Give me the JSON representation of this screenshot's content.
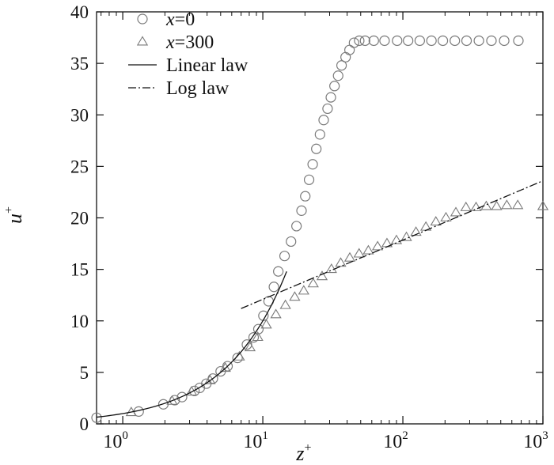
{
  "chart_data": {
    "type": "scatter",
    "xlabel": "z",
    "xlabel_sup": "+",
    "ylabel": "u",
    "ylabel_sup": "+",
    "x_scale": "log",
    "xlim": [
      0.65,
      1000
    ],
    "ylim": [
      0,
      40
    ],
    "x_ticks": [
      {
        "value": 1,
        "base": "10",
        "exp": "0"
      },
      {
        "value": 10,
        "base": "10",
        "exp": "1"
      },
      {
        "value": 100,
        "base": "10",
        "exp": "2"
      },
      {
        "value": 1000,
        "base": "10",
        "exp": "3"
      }
    ],
    "y_ticks": [
      "0",
      "5",
      "10",
      "15",
      "20",
      "25",
      "30",
      "35",
      "40"
    ],
    "grid": false,
    "legend_position": "top-left",
    "series": [
      {
        "name_var": "x",
        "name_rest": "=0",
        "marker": "circle",
        "color": "#7a7a7a",
        "x": [
          0.65,
          1.3,
          1.95,
          2.35,
          2.65,
          3.25,
          3.55,
          3.95,
          4.4,
          5.0,
          5.6,
          6.6,
          7.7,
          8.6,
          9.3,
          10.1,
          11.0,
          12.0,
          12.9,
          14.3,
          15.9,
          17.4,
          18.9,
          20.1,
          21.4,
          22.7,
          24.1,
          25.6,
          27.2,
          29.0,
          30.6,
          32.5,
          34.5,
          36.5,
          39.0,
          41.6,
          44.8,
          48.8,
          53.7,
          62,
          74,
          91,
          109,
          132,
          160,
          193,
          235,
          285,
          349,
          429,
          529,
          668
        ],
        "y": [
          0.6,
          1.2,
          1.9,
          2.3,
          2.6,
          3.2,
          3.5,
          3.9,
          4.4,
          5.1,
          5.6,
          6.4,
          7.7,
          8.4,
          9.2,
          10.5,
          11.9,
          13.3,
          14.8,
          16.3,
          17.7,
          19.2,
          20.7,
          22.1,
          23.7,
          25.2,
          26.7,
          28.1,
          29.5,
          30.6,
          31.7,
          32.8,
          33.8,
          34.8,
          35.6,
          36.3,
          37.0,
          37.2,
          37.2,
          37.2,
          37.2,
          37.2,
          37.2,
          37.2,
          37.2,
          37.2,
          37.2,
          37.2,
          37.2,
          37.2,
          37.2,
          37.2
        ]
      },
      {
        "name_var": "x",
        "name_rest": "=300",
        "marker": "triangle",
        "color": "#7a7a7a",
        "x": [
          1.15,
          2.25,
          3.1,
          4.2,
          5.4,
          6.8,
          8.1,
          9.2,
          10.6,
          12.4,
          14.5,
          16.9,
          19.6,
          22.9,
          26.5,
          30.9,
          36.0,
          41.8,
          48.7,
          56.7,
          66,
          77,
          90,
          106,
          124,
          146,
          172,
          203,
          239,
          282,
          333,
          394,
          467,
          552,
          661,
          1000
        ],
        "y": [
          1.1,
          2.2,
          3.1,
          4.2,
          5.4,
          6.5,
          7.4,
          8.4,
          9.6,
          10.6,
          11.5,
          12.3,
          12.9,
          13.6,
          14.3,
          15.0,
          15.6,
          16.1,
          16.5,
          16.8,
          17.2,
          17.5,
          17.8,
          18.1,
          18.6,
          19.1,
          19.6,
          20.0,
          20.5,
          21.0,
          21.0,
          21.1,
          21.1,
          21.2,
          21.2,
          21.1
        ]
      },
      {
        "name": "Linear law",
        "line": "solid",
        "color": "#111111",
        "x": [
          0.65,
          14.8
        ],
        "y": [
          0.65,
          14.8
        ]
      },
      {
        "name": "Log law",
        "line": "dashdot",
        "color": "#111111",
        "x": [
          7.0,
          1000
        ],
        "y": [
          11.2,
          23.6
        ]
      }
    ]
  }
}
